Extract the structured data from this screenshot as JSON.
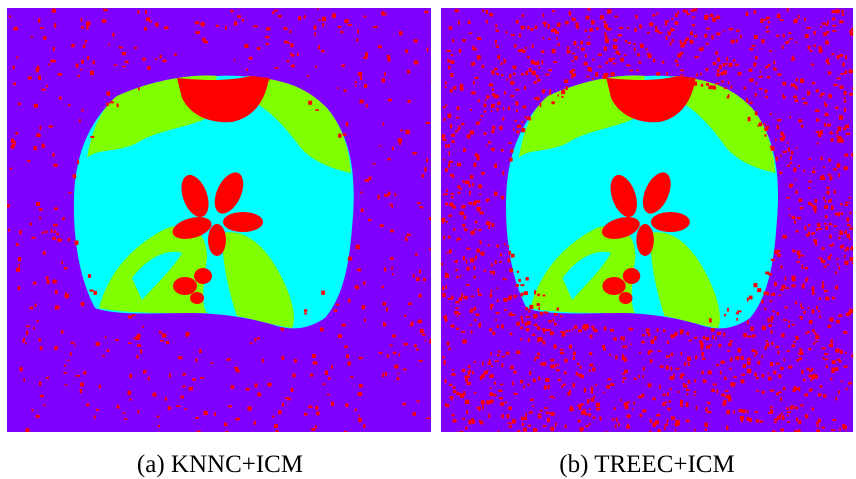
{
  "figure": {
    "panels": [
      {
        "caption": "(a) KNNC+ICM"
      },
      {
        "caption": "(b) TREEC+ICM"
      }
    ]
  }
}
